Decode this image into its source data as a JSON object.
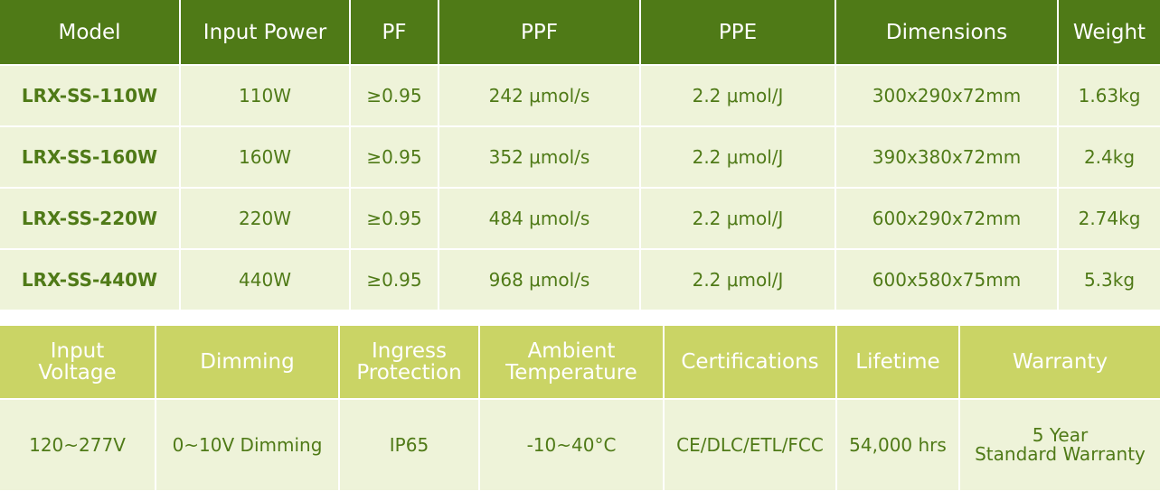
{
  "specs_table": {
    "headers": [
      "Model",
      "Input Power",
      "PF",
      "PPF",
      "PPE",
      "Dimensions",
      "Weight"
    ],
    "rows": [
      [
        "LRX-SS-110W",
        "110W",
        "≥0.95",
        "242 μmol/s",
        "2.2 μmol/J",
        "300x290x72mm",
        "1.63kg"
      ],
      [
        "LRX-SS-160W",
        "160W",
        "≥0.95",
        "352 μmol/s",
        "2.2 μmol/J",
        "390x380x72mm",
        "2.4kg"
      ],
      [
        "LRX-SS-220W",
        "220W",
        "≥0.95",
        "484 μmol/s",
        "2.2 μmol/J",
        "600x290x72mm",
        "2.74kg"
      ],
      [
        "LRX-SS-440W",
        "440W",
        "≥0.95",
        "968 μmol/s",
        "2.2 μmol/J",
        "600x580x75mm",
        "5.3kg"
      ]
    ]
  },
  "general_table": {
    "headers": [
      [
        "Input",
        "Voltage"
      ],
      [
        "Dimming"
      ],
      [
        "Ingress",
        "Protection"
      ],
      [
        "Ambient",
        "Temperature"
      ],
      [
        "Certifications"
      ],
      [
        "Lifetime"
      ],
      [
        "Warranty"
      ]
    ],
    "values": [
      [
        "120~277V"
      ],
      [
        "0~10V Dimming"
      ],
      [
        "IP65"
      ],
      [
        "-10~40°C"
      ],
      [
        "CE/DLC/ETL/FCC"
      ],
      [
        "54,000 hrs"
      ],
      [
        "5 Year",
        "Standard Warranty"
      ]
    ]
  },
  "colors": {
    "header_dark_green": "#4f7a17",
    "header_light_green": "#cad465",
    "cell_background": "#eef3d9",
    "cell_text": "#4f7a17"
  }
}
